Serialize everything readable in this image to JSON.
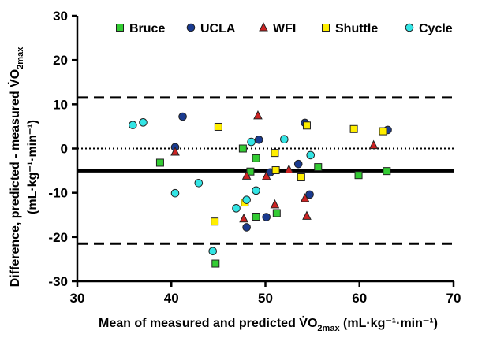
{
  "chart_data": {
    "type": "scatter",
    "title": "",
    "xlabel": {
      "text": "Mean of measured and predicted V̇O",
      "sub": "2max",
      "unit": " (mL·kg⁻¹·min⁻¹)"
    },
    "ylabel": {
      "line1": "Difference, predicted - measured V̇O",
      "line1_sub": "2max",
      "line2": "(mL·kg⁻¹·min⁻¹)"
    },
    "xlim": [
      30,
      70
    ],
    "ylim": [
      -30,
      30
    ],
    "xticks": [
      30,
      40,
      50,
      60,
      70
    ],
    "yticks": [
      -30,
      -20,
      -10,
      0,
      10,
      20,
      30
    ],
    "grid": false,
    "legend_position": "top",
    "reference_lines": [
      {
        "name": "upper-limit",
        "y": 11.5,
        "style": "dashed"
      },
      {
        "name": "zero",
        "y": 0,
        "style": "dotted"
      },
      {
        "name": "mean-bias",
        "y": -5,
        "style": "solid"
      },
      {
        "name": "lower-limit",
        "y": -21.5,
        "style": "dashed"
      }
    ],
    "series": [
      {
        "name": "Bruce",
        "marker": "square",
        "color": "#33cc33",
        "points": [
          [
            38.8,
            -3.2
          ],
          [
            44.7,
            -26
          ],
          [
            47.6,
            0
          ],
          [
            48.4,
            -5.2
          ],
          [
            49.0,
            -2.2
          ],
          [
            49.0,
            -15.4
          ],
          [
            51.2,
            -14.6
          ],
          [
            55.6,
            -4.2
          ],
          [
            59.9,
            -6.0
          ],
          [
            62.9,
            -5.1
          ]
        ]
      },
      {
        "name": "UCLA",
        "marker": "circle",
        "color": "#1a3a8f",
        "points": [
          [
            40.4,
            0.3
          ],
          [
            41.2,
            7.2
          ],
          [
            48.0,
            -17.8
          ],
          [
            49.3,
            2.0
          ],
          [
            50.1,
            -15.5
          ],
          [
            50.5,
            -5.4
          ],
          [
            53.5,
            -3.5
          ],
          [
            54.2,
            5.8
          ],
          [
            54.7,
            -10.4
          ],
          [
            63.0,
            4.2
          ]
        ]
      },
      {
        "name": "WFI",
        "marker": "triangle",
        "color": "#cc2222",
        "points": [
          [
            40.4,
            -0.8
          ],
          [
            47.7,
            -15.9
          ],
          [
            48.0,
            -6.2
          ],
          [
            49.2,
            7.4
          ],
          [
            50.1,
            -6.3
          ],
          [
            51.0,
            -12.7
          ],
          [
            52.5,
            -4.8
          ],
          [
            54.2,
            -11.3
          ],
          [
            54.4,
            -15.3
          ],
          [
            61.5,
            0.7
          ]
        ]
      },
      {
        "name": "Shuttle",
        "marker": "square",
        "color": "#ffee00",
        "points": [
          [
            44.6,
            -16.5
          ],
          [
            45.0,
            4.9
          ],
          [
            47.8,
            -12.2
          ],
          [
            51.0,
            -1.0
          ],
          [
            51.1,
            -4.9
          ],
          [
            53.8,
            -6.5
          ],
          [
            54.4,
            5.2
          ],
          [
            59.4,
            4.4
          ],
          [
            62.5,
            3.9
          ]
        ]
      },
      {
        "name": "Cycle",
        "marker": "circle",
        "color": "#33e5e5",
        "points": [
          [
            35.9,
            5.3
          ],
          [
            37.0,
            5.9
          ],
          [
            40.4,
            -10.1
          ],
          [
            42.9,
            -7.8
          ],
          [
            44.4,
            -23.2
          ],
          [
            46.9,
            -13.5
          ],
          [
            48.0,
            -11.6
          ],
          [
            48.5,
            1.5
          ],
          [
            49.0,
            -9.5
          ],
          [
            52.0,
            2.1
          ],
          [
            54.8,
            -1.5
          ]
        ]
      }
    ]
  }
}
